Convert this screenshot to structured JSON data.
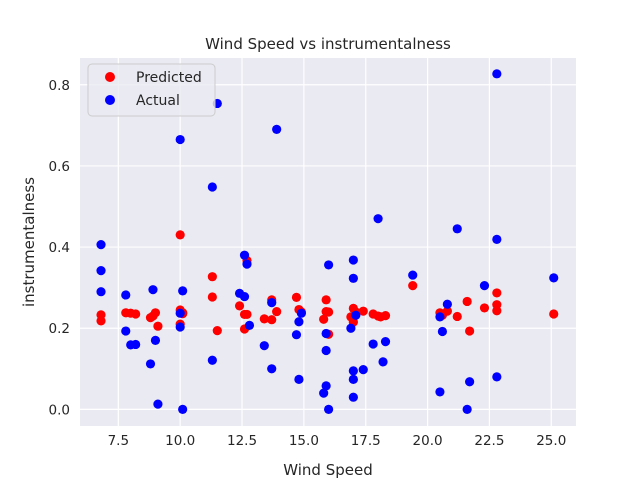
{
  "chart_data": {
    "type": "scatter",
    "title": "Wind Speed vs instrumentalness",
    "xlabel": "Wind Speed",
    "ylabel": "instrumentalness",
    "xlim": [
      5.95,
      26.0
    ],
    "ylim": [
      -0.041,
      0.866
    ],
    "xticks": [
      "7.5",
      "10.0",
      "12.5",
      "15.0",
      "17.5",
      "20.0",
      "22.5",
      "25.0"
    ],
    "xtick_values": [
      7.5,
      10.0,
      12.5,
      15.0,
      17.5,
      20.0,
      22.5,
      25.0
    ],
    "yticks": [
      "0.0",
      "0.2",
      "0.4",
      "0.6",
      "0.8"
    ],
    "ytick_values": [
      0.0,
      0.2,
      0.4,
      0.6,
      0.8
    ],
    "grid": true,
    "legend_position": "upper-left",
    "background": "#eaeaf2",
    "series": [
      {
        "name": "Predicted",
        "color": "#ff0000",
        "points": [
          [
            6.8,
            0.233
          ],
          [
            6.8,
            0.218
          ],
          [
            7.8,
            0.238
          ],
          [
            8.0,
            0.237
          ],
          [
            8.2,
            0.235
          ],
          [
            8.8,
            0.226
          ],
          [
            8.9,
            0.23
          ],
          [
            9.0,
            0.238
          ],
          [
            9.1,
            0.205
          ],
          [
            10.0,
            0.43
          ],
          [
            10.0,
            0.245
          ],
          [
            10.1,
            0.236
          ],
          [
            10.1,
            0.238
          ],
          [
            10.0,
            0.21
          ],
          [
            11.3,
            0.327
          ],
          [
            11.3,
            0.277
          ],
          [
            11.5,
            0.194
          ],
          [
            12.4,
            0.255
          ],
          [
            12.6,
            0.234
          ],
          [
            12.6,
            0.198
          ],
          [
            12.7,
            0.234
          ],
          [
            12.7,
            0.367
          ],
          [
            13.4,
            0.223
          ],
          [
            13.7,
            0.221
          ],
          [
            13.7,
            0.27
          ],
          [
            13.9,
            0.241
          ],
          [
            14.7,
            0.276
          ],
          [
            14.8,
            0.246
          ],
          [
            14.9,
            0.24
          ],
          [
            15.8,
            0.222
          ],
          [
            15.9,
            0.27
          ],
          [
            15.9,
            0.241
          ],
          [
            16.0,
            0.24
          ],
          [
            16.0,
            0.185
          ],
          [
            16.9,
            0.228
          ],
          [
            17.0,
            0.249
          ],
          [
            17.1,
            0.24
          ],
          [
            17.0,
            0.215
          ],
          [
            17.4,
            0.242
          ],
          [
            17.8,
            0.235
          ],
          [
            18.0,
            0.23
          ],
          [
            18.1,
            0.228
          ],
          [
            18.3,
            0.231
          ],
          [
            19.4,
            0.305
          ],
          [
            20.5,
            0.238
          ],
          [
            20.6,
            0.232
          ],
          [
            20.8,
            0.242
          ],
          [
            21.2,
            0.229
          ],
          [
            21.6,
            0.266
          ],
          [
            21.7,
            0.193
          ],
          [
            22.3,
            0.25
          ],
          [
            22.8,
            0.287
          ],
          [
            22.8,
            0.258
          ],
          [
            22.8,
            0.243
          ],
          [
            25.1,
            0.235
          ]
        ]
      },
      {
        "name": "Actual",
        "color": "#0000ff",
        "points": [
          [
            6.8,
            0.406
          ],
          [
            6.8,
            0.342
          ],
          [
            6.8,
            0.29
          ],
          [
            7.8,
            0.282
          ],
          [
            7.8,
            0.193
          ],
          [
            8.0,
            0.159
          ],
          [
            8.2,
            0.16
          ],
          [
            8.8,
            0.112
          ],
          [
            8.9,
            0.295
          ],
          [
            9.0,
            0.17
          ],
          [
            9.1,
            0.013
          ],
          [
            10.0,
            0.665
          ],
          [
            10.0,
            0.237
          ],
          [
            10.0,
            0.203
          ],
          [
            10.1,
            0.292
          ],
          [
            10.1,
            0.0
          ],
          [
            11.3,
            0.548
          ],
          [
            11.3,
            0.121
          ],
          [
            11.5,
            0.754
          ],
          [
            12.4,
            0.286
          ],
          [
            12.6,
            0.38
          ],
          [
            12.6,
            0.278
          ],
          [
            12.7,
            0.358
          ],
          [
            12.8,
            0.207
          ],
          [
            13.4,
            0.157
          ],
          [
            13.7,
            0.263
          ],
          [
            13.7,
            0.1
          ],
          [
            13.9,
            0.69
          ],
          [
            14.7,
            0.184
          ],
          [
            14.8,
            0.074
          ],
          [
            14.8,
            0.216
          ],
          [
            14.9,
            0.237
          ],
          [
            15.8,
            0.04
          ],
          [
            15.9,
            0.187
          ],
          [
            15.9,
            0.145
          ],
          [
            15.9,
            0.058
          ],
          [
            16.0,
            0.356
          ],
          [
            16.0,
            0.0
          ],
          [
            16.9,
            0.2
          ],
          [
            17.0,
            0.368
          ],
          [
            17.0,
            0.323
          ],
          [
            17.0,
            0.095
          ],
          [
            17.0,
            0.074
          ],
          [
            17.0,
            0.03
          ],
          [
            17.1,
            0.232
          ],
          [
            17.4,
            0.098
          ],
          [
            17.8,
            0.161
          ],
          [
            18.0,
            0.47
          ],
          [
            18.2,
            0.117
          ],
          [
            18.3,
            0.167
          ],
          [
            19.4,
            0.331
          ],
          [
            20.5,
            0.228
          ],
          [
            20.5,
            0.043
          ],
          [
            20.6,
            0.192
          ],
          [
            20.8,
            0.259
          ],
          [
            21.2,
            0.445
          ],
          [
            21.6,
            0.0
          ],
          [
            21.7,
            0.068
          ],
          [
            22.3,
            0.305
          ],
          [
            22.8,
            0.827
          ],
          [
            22.8,
            0.419
          ],
          [
            22.8,
            0.08
          ],
          [
            25.1,
            0.324
          ]
        ]
      }
    ]
  }
}
